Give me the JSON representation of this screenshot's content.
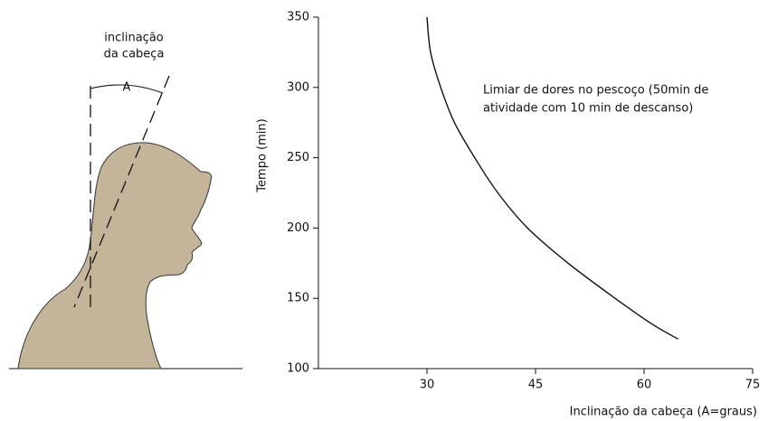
{
  "illustration": {
    "label_lines": [
      "inclinação",
      "da cabeça"
    ],
    "angle_label": "A"
  },
  "chart_data": {
    "type": "line",
    "x": [
      30,
      30.5,
      31.9,
      33.8,
      36.6,
      39.8,
      43.9,
      49.5,
      56,
      61,
      64.7
    ],
    "values": [
      350,
      325,
      300,
      275,
      250,
      225,
      200,
      175,
      150,
      132,
      121
    ],
    "color": "#111111",
    "xlim": [
      15,
      75
    ],
    "xticks": [
      30,
      45,
      60,
      75
    ],
    "ylim": [
      100,
      350
    ],
    "yticks": [
      100,
      150,
      200,
      250,
      300,
      350
    ],
    "x_label": "Inclinação da cabeça (A=graus)",
    "y_label": "Tempo (min)",
    "annotation_lines": [
      "Limiar de dores no pescoço (50min de",
      "atividade com 10 min de descanso)"
    ],
    "grid": false
  }
}
